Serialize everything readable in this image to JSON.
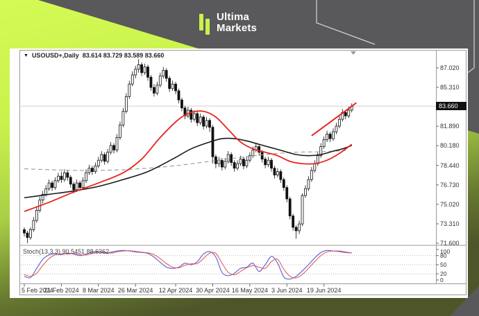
{
  "brand": {
    "name_line1": "Ultima",
    "name_line2": "Markets"
  },
  "window": {
    "dropdown_glyph": "▼",
    "symbol": "USOUSD+,Daily",
    "ohlc_text": "83.614 83.729 83.589 83.660",
    "open": "83.614",
    "high": "83.729",
    "low": "83.589",
    "close": "83.660",
    "current_price_tag": "83.660"
  },
  "colors": {
    "lime": "#c9f24b",
    "bg_gray": "#59595b",
    "candle_up": "#ffffff",
    "candle_down": "#111111",
    "candle_stroke": "#111111",
    "ma_fast": "#e8251f",
    "ma_slow": "#1a1a1a",
    "ma_long": "#999999",
    "trendline": "#e8251f",
    "stoch_k": "#5b5bd6",
    "stoch_d": "#e0605c",
    "price_line": "#cfcfcf",
    "frame": "#9a9a9a",
    "tag_bg": "#111111"
  },
  "chart_data": {
    "type": "candlestick",
    "symbol": "USOUSD+",
    "timeframe": "Daily",
    "ylim": [
      71.48,
      88.48
    ],
    "current_price": 83.66,
    "price_axis_ticks": [
      {
        "v": 87.02,
        "label": "87.020"
      },
      {
        "v": 85.31,
        "label": "85.310"
      },
      {
        "v": 81.89,
        "label": "81.890"
      },
      {
        "v": 80.18,
        "label": "80.180"
      },
      {
        "v": 78.44,
        "label": "78.440"
      },
      {
        "v": 76.73,
        "label": "76.730"
      },
      {
        "v": 75.02,
        "label": "75.020"
      },
      {
        "v": 73.31,
        "label": "73.310"
      },
      {
        "v": 71.6,
        "label": "71.600"
      }
    ],
    "date_axis_ticks": [
      {
        "bar": 0,
        "label": "5 Feb 2024"
      },
      {
        "bar": 12,
        "label": "21 Feb 2024"
      },
      {
        "bar": 24,
        "label": "8 Mar 2024"
      },
      {
        "bar": 36,
        "label": "26 Mar 2024"
      },
      {
        "bar": 49,
        "label": "12 Apr 2024"
      },
      {
        "bar": 61,
        "label": "30 Apr 2024"
      },
      {
        "bar": 73,
        "label": "16 May 2024"
      },
      {
        "bar": 85,
        "label": "3 Jun 2024"
      },
      {
        "bar": 97,
        "label": "19 Jun 2024"
      }
    ],
    "candles": [
      [
        72.8,
        73.0,
        72.2,
        72.5
      ],
      [
        72.5,
        72.7,
        71.6,
        72.1
      ],
      [
        72.1,
        73.0,
        71.9,
        72.8
      ],
      [
        72.8,
        73.9,
        72.6,
        73.6
      ],
      [
        73.6,
        74.8,
        73.4,
        74.5
      ],
      [
        74.5,
        75.7,
        74.3,
        75.4
      ],
      [
        75.4,
        76.2,
        75.1,
        75.9
      ],
      [
        75.9,
        76.7,
        75.7,
        76.4
      ],
      [
        76.4,
        77.2,
        76.2,
        76.9
      ],
      [
        76.9,
        77.1,
        76.2,
        76.5
      ],
      [
        76.5,
        77.4,
        76.3,
        77.1
      ],
      [
        77.1,
        77.8,
        76.9,
        77.5
      ],
      [
        77.5,
        77.9,
        76.9,
        77.2
      ],
      [
        77.2,
        78.1,
        77.0,
        77.8
      ],
      [
        77.8,
        78.0,
        77.1,
        77.4
      ],
      [
        77.4,
        77.6,
        76.5,
        76.8
      ],
      [
        76.8,
        77.0,
        76.0,
        76.3
      ],
      [
        76.3,
        77.2,
        76.1,
        76.9
      ],
      [
        76.9,
        77.1,
        76.2,
        76.5
      ],
      [
        76.5,
        77.4,
        76.3,
        77.1
      ],
      [
        77.1,
        78.1,
        76.9,
        77.8
      ],
      [
        77.8,
        78.5,
        77.6,
        78.2
      ],
      [
        78.2,
        78.4,
        77.6,
        77.9
      ],
      [
        77.9,
        78.7,
        77.7,
        78.4
      ],
      [
        78.4,
        79.2,
        78.2,
        78.9
      ],
      [
        78.9,
        79.7,
        78.7,
        79.4
      ],
      [
        79.4,
        79.6,
        78.5,
        78.8
      ],
      [
        78.8,
        79.9,
        78.6,
        79.6
      ],
      [
        79.6,
        80.5,
        79.4,
        80.2
      ],
      [
        80.2,
        80.4,
        79.5,
        79.8
      ],
      [
        79.8,
        81.2,
        79.6,
        80.9
      ],
      [
        80.9,
        82.3,
        80.7,
        82.0
      ],
      [
        82.0,
        83.5,
        81.8,
        83.2
      ],
      [
        83.2,
        84.8,
        83.0,
        84.5
      ],
      [
        84.5,
        85.9,
        84.3,
        85.6
      ],
      [
        85.6,
        86.7,
        85.4,
        86.4
      ],
      [
        86.4,
        87.2,
        86.1,
        86.9
      ],
      [
        86.9,
        87.8,
        86.6,
        87.3
      ],
      [
        87.3,
        87.5,
        86.3,
        86.6
      ],
      [
        86.6,
        87.4,
        86.4,
        87.1
      ],
      [
        87.1,
        87.3,
        85.9,
        86.2
      ],
      [
        86.2,
        86.4,
        85.0,
        85.3
      ],
      [
        85.3,
        85.6,
        84.5,
        84.8
      ],
      [
        84.8,
        85.8,
        84.6,
        85.5
      ],
      [
        85.5,
        86.6,
        85.3,
        86.3
      ],
      [
        86.3,
        87.1,
        86.1,
        86.8
      ],
      [
        86.8,
        87.0,
        85.8,
        86.1
      ],
      [
        86.1,
        86.3,
        84.9,
        85.2
      ],
      [
        85.2,
        85.9,
        85.0,
        85.6
      ],
      [
        85.6,
        85.8,
        84.7,
        85.0
      ],
      [
        85.0,
        85.2,
        83.9,
        84.2
      ],
      [
        84.2,
        84.4,
        83.2,
        83.5
      ],
      [
        83.5,
        83.7,
        82.5,
        82.8
      ],
      [
        82.8,
        83.6,
        82.6,
        83.3
      ],
      [
        83.3,
        83.5,
        82.2,
        82.5
      ],
      [
        82.5,
        83.3,
        82.3,
        83.0
      ],
      [
        83.0,
        83.2,
        81.9,
        82.2
      ],
      [
        82.2,
        83.0,
        82.0,
        82.7
      ],
      [
        82.7,
        82.9,
        81.6,
        81.9
      ],
      [
        81.9,
        82.7,
        81.7,
        82.4
      ],
      [
        82.4,
        82.6,
        81.4,
        81.8
      ],
      [
        81.8,
        82.0,
        78.6,
        79.2
      ],
      [
        79.2,
        79.4,
        78.2,
        78.6
      ],
      [
        78.6,
        79.2,
        78.3,
        78.9
      ],
      [
        78.9,
        79.1,
        78.0,
        78.3
      ],
      [
        78.3,
        79.1,
        78.1,
        78.8
      ],
      [
        78.8,
        79.7,
        78.6,
        79.4
      ],
      [
        79.4,
        79.6,
        78.4,
        78.7
      ],
      [
        78.7,
        78.9,
        77.9,
        78.2
      ],
      [
        78.2,
        78.9,
        78.0,
        78.6
      ],
      [
        78.6,
        79.3,
        78.4,
        79.0
      ],
      [
        79.0,
        79.2,
        78.1,
        78.4
      ],
      [
        78.4,
        79.2,
        78.2,
        78.9
      ],
      [
        78.9,
        79.6,
        78.7,
        79.3
      ],
      [
        79.3,
        80.1,
        79.1,
        79.8
      ],
      [
        79.8,
        80.4,
        79.6,
        80.1
      ],
      [
        80.1,
        80.3,
        79.3,
        79.6
      ],
      [
        79.6,
        79.8,
        78.7,
        79.0
      ],
      [
        79.0,
        79.2,
        78.2,
        78.5
      ],
      [
        78.5,
        79.2,
        78.3,
        78.9
      ],
      [
        78.9,
        79.1,
        77.9,
        78.2
      ],
      [
        78.2,
        78.4,
        77.3,
        77.6
      ],
      [
        77.6,
        78.2,
        77.4,
        77.9
      ],
      [
        77.9,
        78.1,
        76.9,
        77.2
      ],
      [
        77.2,
        77.4,
        76.2,
        76.5
      ],
      [
        76.5,
        76.7,
        75.2,
        75.5
      ],
      [
        75.5,
        75.7,
        73.7,
        74.0
      ],
      [
        74.0,
        74.2,
        72.7,
        73.0
      ],
      [
        73.0,
        73.2,
        72.0,
        72.7
      ],
      [
        72.7,
        73.6,
        72.4,
        73.3
      ],
      [
        73.3,
        76.0,
        73.1,
        75.8
      ],
      [
        75.8,
        76.7,
        75.6,
        76.4
      ],
      [
        76.4,
        77.5,
        76.2,
        77.2
      ],
      [
        77.2,
        78.3,
        77.0,
        78.0
      ],
      [
        78.0,
        78.9,
        77.8,
        78.6
      ],
      [
        78.6,
        79.6,
        78.4,
        79.3
      ],
      [
        79.3,
        80.4,
        79.1,
        80.1
      ],
      [
        80.1,
        81.0,
        79.9,
        80.7
      ],
      [
        80.7,
        81.5,
        80.5,
        81.2
      ],
      [
        81.2,
        81.4,
        80.5,
        80.8
      ],
      [
        80.8,
        81.7,
        80.6,
        81.4
      ],
      [
        81.4,
        82.2,
        81.2,
        81.9
      ],
      [
        81.9,
        82.8,
        81.7,
        82.5
      ],
      [
        82.5,
        83.4,
        82.3,
        83.1
      ],
      [
        83.1,
        83.3,
        82.5,
        82.8
      ],
      [
        82.8,
        83.6,
        82.6,
        83.3
      ],
      [
        83.3,
        83.9,
        83.1,
        83.66
      ]
    ],
    "overlays": {
      "ma_fast_red": {
        "points": [
          [
            0,
            74.4
          ],
          [
            8,
            75.2
          ],
          [
            16,
            76.1
          ],
          [
            24,
            76.9
          ],
          [
            32,
            77.8
          ],
          [
            38,
            79.0
          ],
          [
            44,
            80.9
          ],
          [
            50,
            82.5
          ],
          [
            54,
            83.1
          ],
          [
            58,
            83.2
          ],
          [
            62,
            82.7
          ],
          [
            66,
            81.6
          ],
          [
            70,
            80.5
          ],
          [
            74,
            79.9
          ],
          [
            78,
            79.6
          ],
          [
            82,
            79.3
          ],
          [
            86,
            78.8
          ],
          [
            90,
            78.6
          ],
          [
            94,
            78.6
          ],
          [
            98,
            78.9
          ],
          [
            102,
            79.5
          ],
          [
            106,
            80.3
          ]
        ]
      },
      "ma_slow_black": {
        "points": [
          [
            0,
            75.6
          ],
          [
            8,
            75.9
          ],
          [
            16,
            76.2
          ],
          [
            24,
            76.6
          ],
          [
            32,
            77.2
          ],
          [
            40,
            77.9
          ],
          [
            48,
            79.0
          ],
          [
            54,
            79.9
          ],
          [
            60,
            80.5
          ],
          [
            64,
            80.8
          ],
          [
            68,
            80.8
          ],
          [
            72,
            80.6
          ],
          [
            76,
            80.3
          ],
          [
            80,
            80.0
          ],
          [
            84,
            79.7
          ],
          [
            88,
            79.4
          ],
          [
            92,
            79.3
          ],
          [
            96,
            79.4
          ],
          [
            100,
            79.7
          ],
          [
            103,
            79.9
          ],
          [
            106,
            80.2
          ]
        ]
      },
      "ma_long_dashed": {
        "points": [
          [
            0,
            78.15
          ],
          [
            10,
            78.05
          ],
          [
            20,
            78.0
          ],
          [
            30,
            78.05
          ],
          [
            40,
            78.2
          ],
          [
            50,
            78.45
          ],
          [
            60,
            78.8
          ],
          [
            70,
            79.15
          ],
          [
            80,
            79.45
          ],
          [
            88,
            79.6
          ],
          [
            96,
            79.65
          ],
          [
            104,
            79.75
          ]
        ]
      },
      "trendline_red": {
        "from": [
          93,
          81.05
        ],
        "to": [
          107.5,
          83.95
        ]
      }
    },
    "indicator": {
      "label": "Stoch(13,3,3) 90.5451 88.6362",
      "name": "Stoch(13,3,3)",
      "k_value": "90.5451",
      "d_value": "88.6362",
      "axis_ticks": [
        {
          "v": 100,
          "label": "100",
          "grid": false
        },
        {
          "v": 80,
          "label": "80",
          "grid": true
        },
        {
          "v": 50,
          "label": "50",
          "grid": true
        },
        {
          "v": 20,
          "label": "20",
          "grid": true
        },
        {
          "v": 0,
          "label": "0",
          "grid": false
        }
      ],
      "k_points": [
        [
          0,
          12
        ],
        [
          2,
          8
        ],
        [
          4,
          38
        ],
        [
          6,
          68
        ],
        [
          8,
          82
        ],
        [
          10,
          86
        ],
        [
          12,
          83
        ],
        [
          14,
          88
        ],
        [
          16,
          85
        ],
        [
          18,
          80
        ],
        [
          20,
          85
        ],
        [
          22,
          91
        ],
        [
          24,
          93
        ],
        [
          26,
          88
        ],
        [
          28,
          91
        ],
        [
          30,
          95
        ],
        [
          32,
          97
        ],
        [
          34,
          95
        ],
        [
          36,
          92
        ],
        [
          38,
          90
        ],
        [
          40,
          87
        ],
        [
          42,
          75
        ],
        [
          44,
          58
        ],
        [
          46,
          42
        ],
        [
          48,
          38
        ],
        [
          50,
          42
        ],
        [
          52,
          55
        ],
        [
          54,
          50
        ],
        [
          56,
          60
        ],
        [
          58,
          85
        ],
        [
          60,
          93
        ],
        [
          62,
          75
        ],
        [
          64,
          25
        ],
        [
          66,
          14
        ],
        [
          68,
          22
        ],
        [
          70,
          38
        ],
        [
          72,
          42
        ],
        [
          74,
          55
        ],
        [
          76,
          28
        ],
        [
          78,
          50
        ],
        [
          80,
          77
        ],
        [
          82,
          55
        ],
        [
          84,
          10
        ],
        [
          86,
          3
        ],
        [
          88,
          12
        ],
        [
          90,
          30
        ],
        [
          92,
          50
        ],
        [
          94,
          72
        ],
        [
          96,
          90
        ],
        [
          98,
          97
        ],
        [
          100,
          95
        ],
        [
          102,
          93
        ],
        [
          104,
          90
        ],
        [
          106,
          89
        ]
      ],
      "d_points": [
        [
          0,
          18
        ],
        [
          2,
          12
        ],
        [
          4,
          22
        ],
        [
          6,
          48
        ],
        [
          8,
          70
        ],
        [
          10,
          82
        ],
        [
          12,
          86
        ],
        [
          14,
          85
        ],
        [
          16,
          87
        ],
        [
          18,
          83
        ],
        [
          20,
          82
        ],
        [
          22,
          87
        ],
        [
          24,
          91
        ],
        [
          26,
          91
        ],
        [
          28,
          88
        ],
        [
          30,
          92
        ],
        [
          32,
          95
        ],
        [
          34,
          96
        ],
        [
          36,
          94
        ],
        [
          38,
          91
        ],
        [
          40,
          89
        ],
        [
          42,
          83
        ],
        [
          44,
          70
        ],
        [
          46,
          54
        ],
        [
          48,
          42
        ],
        [
          50,
          40
        ],
        [
          52,
          48
        ],
        [
          54,
          53
        ],
        [
          56,
          54
        ],
        [
          58,
          70
        ],
        [
          60,
          88
        ],
        [
          62,
          87
        ],
        [
          64,
          55
        ],
        [
          66,
          25
        ],
        [
          68,
          17
        ],
        [
          70,
          28
        ],
        [
          72,
          40
        ],
        [
          74,
          47
        ],
        [
          76,
          42
        ],
        [
          78,
          38
        ],
        [
          80,
          60
        ],
        [
          82,
          68
        ],
        [
          84,
          35
        ],
        [
          86,
          12
        ],
        [
          88,
          7
        ],
        [
          90,
          18
        ],
        [
          92,
          38
        ],
        [
          94,
          60
        ],
        [
          96,
          80
        ],
        [
          98,
          92
        ],
        [
          100,
          95
        ],
        [
          102,
          95
        ],
        [
          104,
          92
        ],
        [
          106,
          88.6
        ]
      ]
    }
  }
}
